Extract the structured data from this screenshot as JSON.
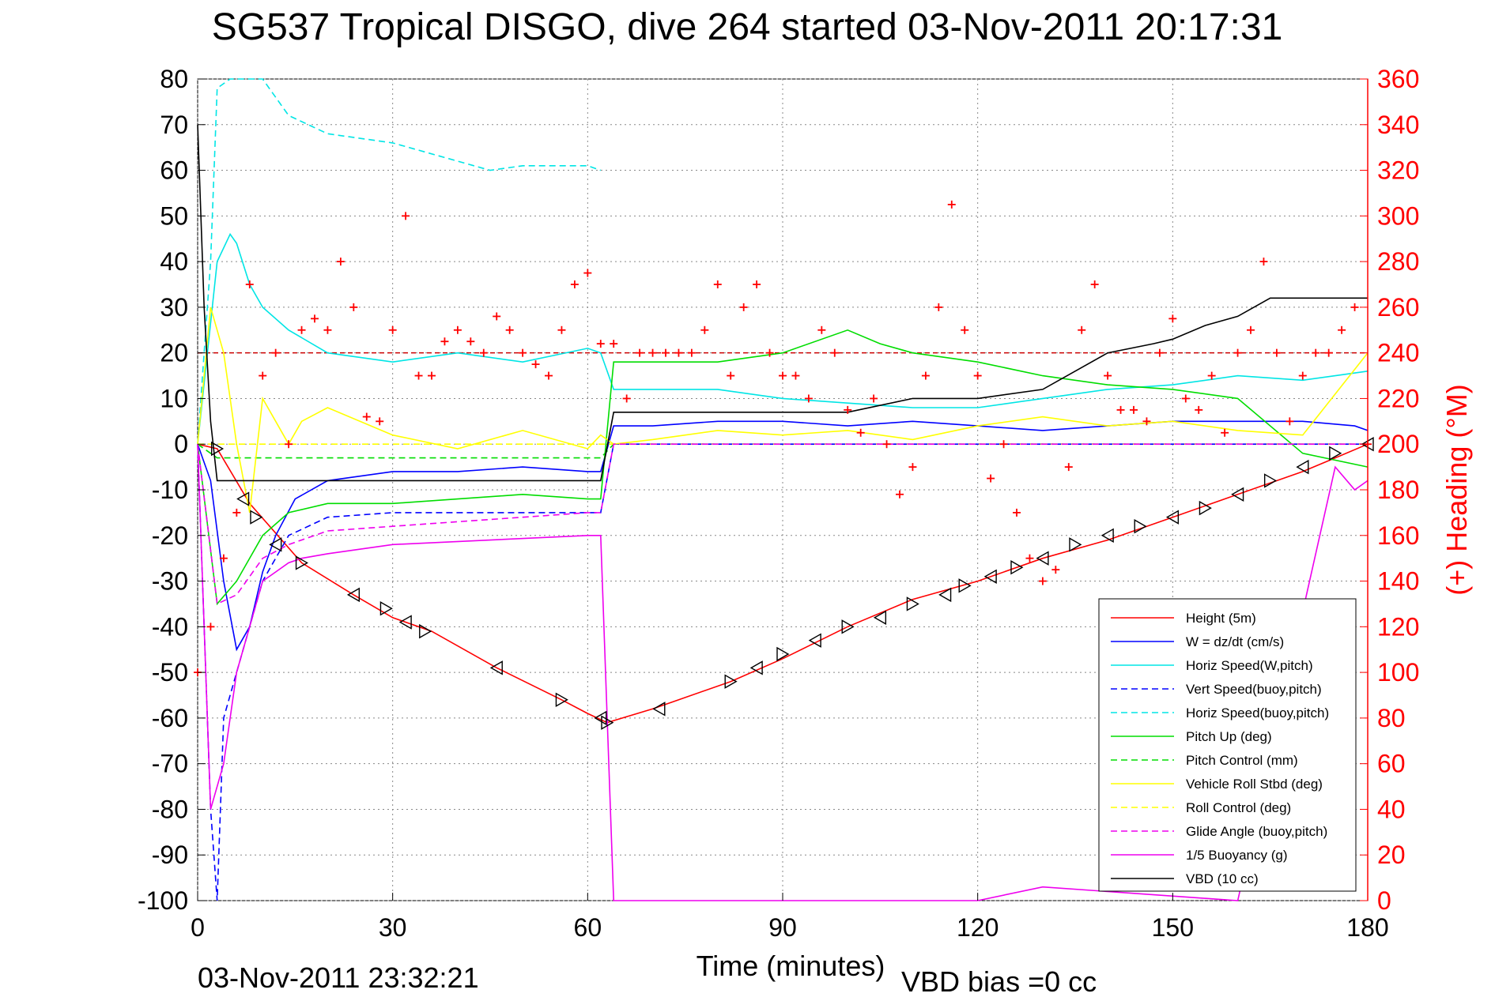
{
  "chart_data": {
    "type": "line",
    "title": "SG537 Tropical DISGO, dive 264 started 03-Nov-2011 20:17:31",
    "xlabel": "Time (minutes)",
    "ylabel_right": "(+) Heading (°M)",
    "footer_left": "03-Nov-2011 23:32:21",
    "footer_right": "VBD bias =0 cc",
    "xlim": [
      0,
      180
    ],
    "ylim_left": [
      -100,
      80
    ],
    "ylim_right": [
      0,
      360
    ],
    "grid": true,
    "legend_position": "bottom-right",
    "x_ticks": [
      0,
      30,
      60,
      90,
      120,
      150,
      180
    ],
    "x_tick_labels": [
      "0",
      "30",
      "60",
      "90",
      "120",
      "150",
      "180"
    ],
    "y_ticks_left": [
      80,
      70,
      60,
      50,
      40,
      30,
      20,
      10,
      0,
      -10,
      -20,
      -30,
      -40,
      -50,
      -60,
      -70,
      -80,
      -90,
      -100
    ],
    "y_tick_labels_left": [
      "80",
      "70",
      "60",
      "50",
      "40",
      "30",
      "20",
      "10",
      "0",
      "-10",
      "-20",
      "-30",
      "-40",
      "-50",
      "-60",
      "-70",
      "-80",
      "-90",
      "-100"
    ],
    "y_ticks_right": [
      360,
      340,
      320,
      300,
      280,
      260,
      240,
      220,
      200,
      180,
      160,
      140,
      120,
      100,
      80,
      60,
      40,
      20,
      0
    ],
    "y_tick_labels_right": [
      "360",
      "340",
      "320",
      "300",
      "280",
      "260",
      "240",
      "220",
      "200",
      "180",
      "160",
      "140",
      "120",
      "100",
      "80",
      "60",
      "40",
      "20",
      "0"
    ],
    "heading_reference": 240,
    "series": [
      {
        "name": "Height (5m)",
        "color": "#ff0000",
        "style": "solid",
        "x": [
          0,
          3,
          8,
          16,
          24,
          30,
          36,
          46,
          56,
          60,
          63,
          70,
          82,
          90,
          100,
          110,
          120,
          130,
          140,
          150,
          160,
          170,
          175,
          180
        ],
        "y": [
          0,
          -1,
          -13,
          -26,
          -33,
          -38,
          -41,
          -49,
          -56,
          -59,
          -61,
          -58,
          -52,
          -47,
          -40,
          -34,
          -30,
          -25,
          -21,
          -16,
          -11,
          -6,
          -3,
          0
        ]
      },
      {
        "name": "W = dz/dt (cm/s)",
        "color": "#0000ff",
        "style": "solid",
        "x": [
          0,
          2,
          4,
          6,
          8,
          10,
          12,
          15,
          20,
          30,
          40,
          50,
          60,
          62,
          64,
          70,
          80,
          90,
          100,
          110,
          120,
          130,
          140,
          150,
          160,
          170,
          178,
          180
        ],
        "y": [
          0,
          -8,
          -30,
          -45,
          -40,
          -28,
          -20,
          -12,
          -8,
          -6,
          -6,
          -5,
          -6,
          -6,
          4,
          4,
          5,
          5,
          4,
          5,
          4,
          3,
          4,
          5,
          5,
          5,
          4,
          3
        ]
      },
      {
        "name": "Horiz Speed(W,pitch)",
        "color": "#00e5e5",
        "style": "solid",
        "x": [
          0,
          3,
          5,
          6,
          8,
          10,
          14,
          20,
          30,
          40,
          50,
          60,
          62,
          64,
          70,
          80,
          90,
          100,
          110,
          120,
          130,
          140,
          150,
          160,
          170,
          175,
          180
        ],
        "y": [
          0,
          40,
          46,
          44,
          35,
          30,
          25,
          20,
          18,
          20,
          18,
          21,
          20,
          12,
          12,
          12,
          10,
          9,
          8,
          8,
          10,
          12,
          13,
          15,
          14,
          15,
          16
        ]
      },
      {
        "name": "Vert Speed(buoy,pitch)",
        "color": "#0000ff",
        "style": "dashed",
        "x": [
          0,
          2,
          3,
          4,
          6,
          8,
          10,
          14,
          20,
          30,
          40,
          50,
          60,
          62,
          64,
          70,
          80,
          90,
          100,
          110,
          120,
          130,
          140,
          150,
          160,
          170,
          180
        ],
        "y": [
          0,
          -80,
          -100,
          -60,
          -50,
          -40,
          -30,
          -20,
          -16,
          -15,
          -15,
          -15,
          -15,
          -15,
          0,
          0,
          0,
          0,
          0,
          0,
          0,
          0,
          0,
          0,
          0,
          0,
          0
        ]
      },
      {
        "name": "Horiz Speed(buoy,pitch)",
        "color": "#00e5e5",
        "style": "dashed",
        "x": [
          0,
          2,
          3,
          5,
          8,
          10,
          14,
          20,
          30,
          40,
          45,
          50,
          60,
          62
        ],
        "y": [
          0,
          40,
          78,
          80,
          80,
          80,
          72,
          68,
          66,
          62,
          60,
          61,
          61,
          60
        ]
      },
      {
        "name": "Pitch Up (deg)",
        "color": "#00dd00",
        "style": "solid",
        "x": [
          0,
          3,
          6,
          10,
          14,
          20,
          30,
          40,
          50,
          60,
          62,
          64,
          70,
          80,
          90,
          100,
          105,
          110,
          120,
          130,
          140,
          150,
          160,
          170,
          180
        ],
        "y": [
          0,
          -35,
          -30,
          -20,
          -15,
          -13,
          -13,
          -12,
          -11,
          -12,
          -12,
          18,
          18,
          18,
          20,
          25,
          22,
          20,
          18,
          15,
          13,
          12,
          10,
          -2,
          -5
        ]
      },
      {
        "name": "Pitch Control (mm)",
        "color": "#00dd00",
        "style": "dashed",
        "x": [
          0,
          3,
          10,
          20,
          30,
          40,
          50,
          60,
          62,
          64,
          180
        ],
        "y": [
          0,
          -3,
          -3,
          -3,
          -3,
          -3,
          -3,
          -3,
          -3,
          0,
          0
        ]
      },
      {
        "name": "Vehicle Roll Stbd (deg)",
        "color": "#ffff00",
        "style": "solid",
        "x": [
          0,
          2,
          4,
          6,
          8,
          10,
          12,
          14,
          16,
          20,
          30,
          40,
          50,
          60,
          62,
          64,
          70,
          80,
          90,
          100,
          110,
          120,
          130,
          140,
          150,
          160,
          170,
          180
        ],
        "y": [
          0,
          30,
          20,
          0,
          -15,
          10,
          5,
          0,
          5,
          8,
          2,
          -1,
          3,
          -1,
          2,
          0,
          1,
          3,
          2,
          3,
          1,
          4,
          6,
          4,
          5,
          3,
          2,
          20
        ]
      },
      {
        "name": "Roll Control (deg)",
        "color": "#ffff00",
        "style": "dashed",
        "x": [
          0,
          20,
          40,
          60,
          62,
          64,
          80,
          100,
          120,
          140,
          160,
          180
        ],
        "y": [
          0,
          0,
          0,
          0,
          0,
          0,
          0,
          0,
          0,
          0,
          0,
          0
        ]
      },
      {
        "name": "Glide Angle (buoy,pitch)",
        "color": "#ee00ee",
        "style": "dashed",
        "x": [
          0,
          3,
          6,
          10,
          14,
          20,
          30,
          40,
          50,
          60,
          62,
          64,
          180
        ],
        "y": [
          0,
          -35,
          -33,
          -25,
          -22,
          -19,
          -18,
          -17,
          -16,
          -15,
          -15,
          0,
          0
        ]
      },
      {
        "name": "1/5 Buoyancy (g)",
        "color": "#ee00ee",
        "style": "solid",
        "x": [
          0,
          2,
          4,
          6,
          8,
          10,
          12,
          14,
          16,
          20,
          30,
          60,
          62,
          64,
          120,
          130,
          160,
          175,
          178,
          180
        ],
        "y": [
          0,
          -80,
          -70,
          -50,
          -40,
          -30,
          -28,
          -26,
          -25,
          -24,
          -22,
          -20,
          -20,
          -100,
          -100,
          -97,
          -100,
          -5,
          -10,
          -8
        ]
      },
      {
        "name": "VBD (10 cc)",
        "color": "#000000",
        "style": "solid",
        "x": [
          0,
          1,
          2,
          3,
          5,
          10,
          20,
          30,
          40,
          50,
          60,
          62,
          64,
          70,
          80,
          90,
          100,
          110,
          120,
          130,
          135,
          140,
          147,
          150,
          155,
          160,
          165,
          170,
          180
        ],
        "y": [
          70,
          30,
          5,
          -8,
          -8,
          -8,
          -8,
          -8,
          -8,
          -8,
          -8,
          -8,
          7,
          7,
          7,
          7,
          7,
          10,
          10,
          12,
          16,
          20,
          22,
          23,
          26,
          28,
          32,
          32,
          32
        ]
      }
    ],
    "heading_series": {
      "name": "Heading",
      "color": "#ff0000",
      "marker": "+",
      "x": [
        0,
        2,
        4,
        6,
        8,
        10,
        12,
        14,
        16,
        18,
        20,
        22,
        24,
        26,
        28,
        30,
        32,
        34,
        36,
        38,
        40,
        42,
        44,
        46,
        48,
        50,
        52,
        54,
        56,
        58,
        60,
        62,
        64,
        66,
        68,
        70,
        72,
        74,
        76,
        78,
        80,
        82,
        84,
        86,
        88,
        90,
        92,
        94,
        96,
        98,
        100,
        102,
        104,
        106,
        108,
        110,
        112,
        114,
        116,
        118,
        120,
        122,
        124,
        126,
        128,
        130,
        132,
        134,
        136,
        138,
        140,
        142,
        144,
        146,
        148,
        150,
        152,
        154,
        156,
        158,
        160,
        162,
        164,
        166,
        168,
        170,
        172,
        174,
        176,
        178,
        180
      ],
      "y": [
        100,
        120,
        150,
        170,
        270,
        230,
        240,
        200,
        250,
        255,
        250,
        280,
        260,
        212,
        210,
        250,
        300,
        230,
        230,
        245,
        250,
        245,
        240,
        256,
        250,
        240,
        235,
        230,
        250,
        270,
        275,
        244,
        244,
        220,
        240,
        240,
        240,
        240,
        240,
        250,
        270,
        230,
        260,
        270,
        240,
        230,
        230,
        220,
        250,
        240,
        215,
        205,
        220,
        200,
        178,
        190,
        230,
        260,
        305,
        250,
        230,
        185,
        200,
        170,
        150,
        140,
        145,
        190,
        250,
        270,
        230,
        215,
        215,
        210,
        240,
        255,
        220,
        215,
        230,
        205,
        240,
        250,
        280,
        240,
        210,
        230,
        240,
        240,
        250,
        260,
        200
      ]
    },
    "markers": {
      "name": "Triangles",
      "color": "#000000",
      "marker": "triangle",
      "x": [
        3,
        7,
        9,
        12,
        16,
        24,
        29,
        32,
        35,
        46,
        56,
        62,
        63,
        71,
        82,
        86,
        90,
        95,
        100,
        105,
        110,
        115,
        118,
        122,
        126,
        130,
        135,
        140,
        145,
        150,
        155,
        160,
        165,
        170,
        175,
        180
      ],
      "y": [
        -1,
        -12,
        -16,
        -22,
        -26,
        -33,
        -36,
        -39,
        -41,
        -49,
        -56,
        -60,
        -61,
        -58,
        -52,
        -49,
        -46,
        -43,
        -40,
        -38,
        -35,
        -33,
        -31,
        -29,
        -27,
        -25,
        -22,
        -20,
        -18,
        -16,
        -14,
        -11,
        -8,
        -5,
        -2,
        0
      ]
    }
  }
}
